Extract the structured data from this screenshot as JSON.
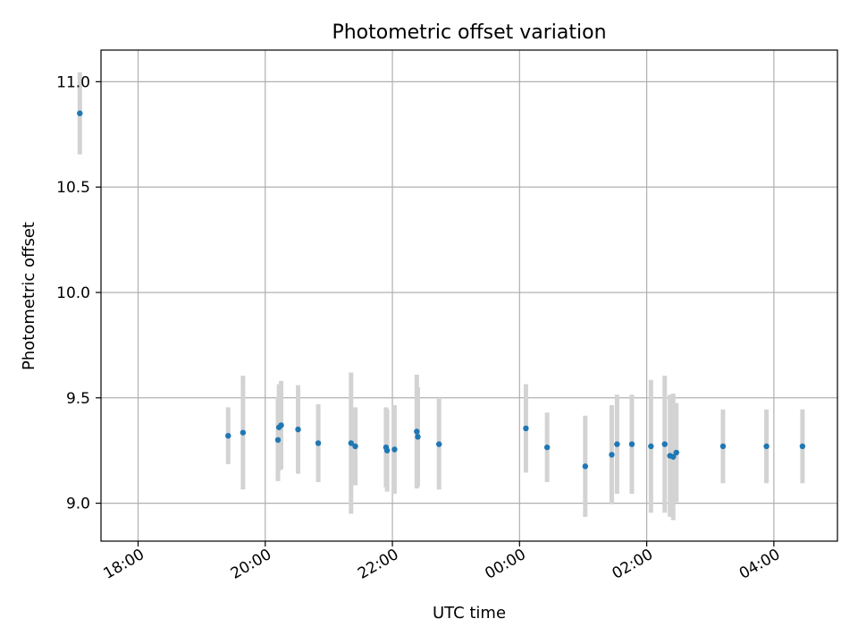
{
  "chart_data": {
    "type": "scatter",
    "title": "Photometric offset variation",
    "xlabel": "UTC time",
    "ylabel": "Photometric offset",
    "xlim": [
      "17:25",
      "05:00"
    ],
    "ylim": [
      8.82,
      11.15
    ],
    "x_ticks": [
      "18:00",
      "20:00",
      "22:00",
      "00:00",
      "02:00",
      "04:00"
    ],
    "y_ticks": [
      9.0,
      9.5,
      10.0,
      10.5,
      11.0
    ],
    "y_tick_labels": [
      "9.0",
      "9.5",
      "10.0",
      "10.5",
      "11.0"
    ],
    "grid": true,
    "point_color": "#1f77b4",
    "errorbar_color": "#d3d3d3",
    "points": [
      {
        "time": "17:05",
        "y": 10.85,
        "err": 0.195
      },
      {
        "time": "19:25",
        "y": 9.32,
        "err": 0.135
      },
      {
        "time": "19:39",
        "y": 9.335,
        "err": 0.27
      },
      {
        "time": "20:12",
        "y": 9.3,
        "err": 0.195
      },
      {
        "time": "20:13",
        "y": 9.36,
        "err": 0.205
      },
      {
        "time": "20:15",
        "y": 9.37,
        "err": 0.21
      },
      {
        "time": "20:31",
        "y": 9.35,
        "err": 0.21
      },
      {
        "time": "20:50",
        "y": 9.285,
        "err": 0.185
      },
      {
        "time": "21:21",
        "y": 9.285,
        "err": 0.335
      },
      {
        "time": "21:25",
        "y": 9.27,
        "err": 0.185
      },
      {
        "time": "21:54",
        "y": 9.265,
        "err": 0.19
      },
      {
        "time": "21:55",
        "y": 9.25,
        "err": 0.195
      },
      {
        "time": "22:02",
        "y": 9.255,
        "err": 0.21
      },
      {
        "time": "22:23",
        "y": 9.34,
        "err": 0.27
      },
      {
        "time": "22:24",
        "y": 9.315,
        "err": 0.235
      },
      {
        "time": "22:44",
        "y": 9.28,
        "err": 0.215
      },
      {
        "time": "00:06",
        "y": 9.355,
        "err": 0.21
      },
      {
        "time": "00:26",
        "y": 9.265,
        "err": 0.165
      },
      {
        "time": "01:02",
        "y": 9.175,
        "err": 0.24
      },
      {
        "time": "01:27",
        "y": 9.23,
        "err": 0.235
      },
      {
        "time": "01:32",
        "y": 9.28,
        "err": 0.235
      },
      {
        "time": "01:46",
        "y": 9.28,
        "err": 0.235
      },
      {
        "time": "02:04",
        "y": 9.27,
        "err": 0.315
      },
      {
        "time": "02:17",
        "y": 9.28,
        "err": 0.325
      },
      {
        "time": "02:22",
        "y": 9.225,
        "err": 0.29
      },
      {
        "time": "02:25",
        "y": 9.22,
        "err": 0.3
      },
      {
        "time": "02:28",
        "y": 9.24,
        "err": 0.235
      },
      {
        "time": "03:12",
        "y": 9.27,
        "err": 0.175
      },
      {
        "time": "03:53",
        "y": 9.27,
        "err": 0.175
      },
      {
        "time": "04:27",
        "y": 9.27,
        "err": 0.175
      }
    ]
  }
}
